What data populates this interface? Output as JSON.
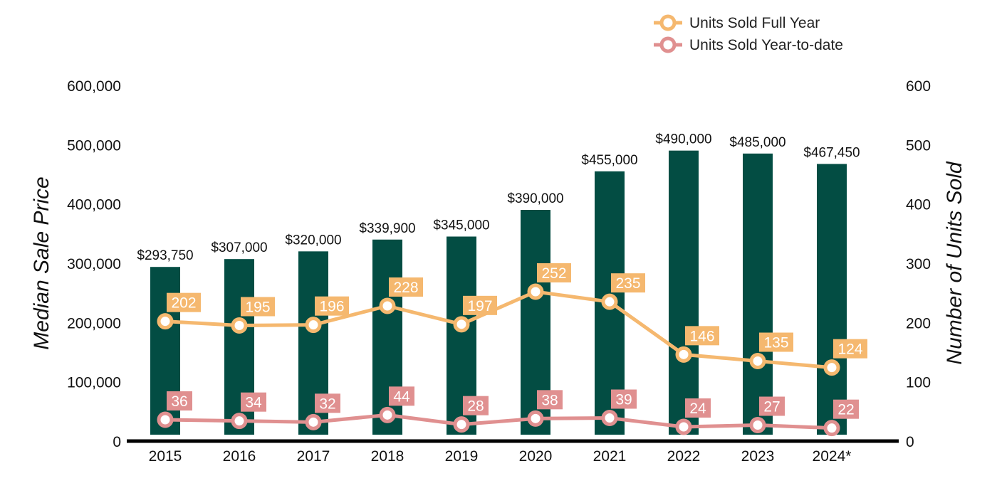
{
  "chart_data": {
    "type": "bar",
    "categories": [
      "2015",
      "2016",
      "2017",
      "2018",
      "2019",
      "2020",
      "2021",
      "2022",
      "2023",
      "2024*"
    ],
    "ylabel": "Median Sale Price",
    "y2label": "Number of Units Sold",
    "ylim": [
      0,
      600000
    ],
    "y2lim": [
      0,
      600
    ],
    "yticks": [
      "0",
      "100,000",
      "200,000",
      "300,000",
      "400,000",
      "500,000",
      "600,000"
    ],
    "y2ticks": [
      "0",
      "100",
      "200",
      "300",
      "400",
      "500",
      "600"
    ],
    "grid": false,
    "legend_position": "top-right",
    "bars": {
      "color": "#034d43",
      "values": [
        293750,
        307000,
        320000,
        339900,
        345000,
        390000,
        455000,
        490000,
        485000,
        467450
      ],
      "labels": [
        "$293,750",
        "$307,000",
        "$320,000",
        "$339,900",
        "$345,000",
        "$390,000",
        "$455,000",
        "$490,000",
        "$485,000",
        "$467,450"
      ]
    },
    "series": [
      {
        "name": "Units Sold Full Year",
        "type": "line",
        "axis": "right",
        "color": "#f5b86f",
        "values": [
          202,
          195,
          196,
          228,
          197,
          252,
          235,
          146,
          135,
          124
        ]
      },
      {
        "name": "Units Sold Year-to-date",
        "type": "line",
        "axis": "right",
        "color": "#e09090",
        "values": [
          36,
          34,
          32,
          44,
          28,
          38,
          39,
          24,
          27,
          22
        ]
      }
    ]
  }
}
